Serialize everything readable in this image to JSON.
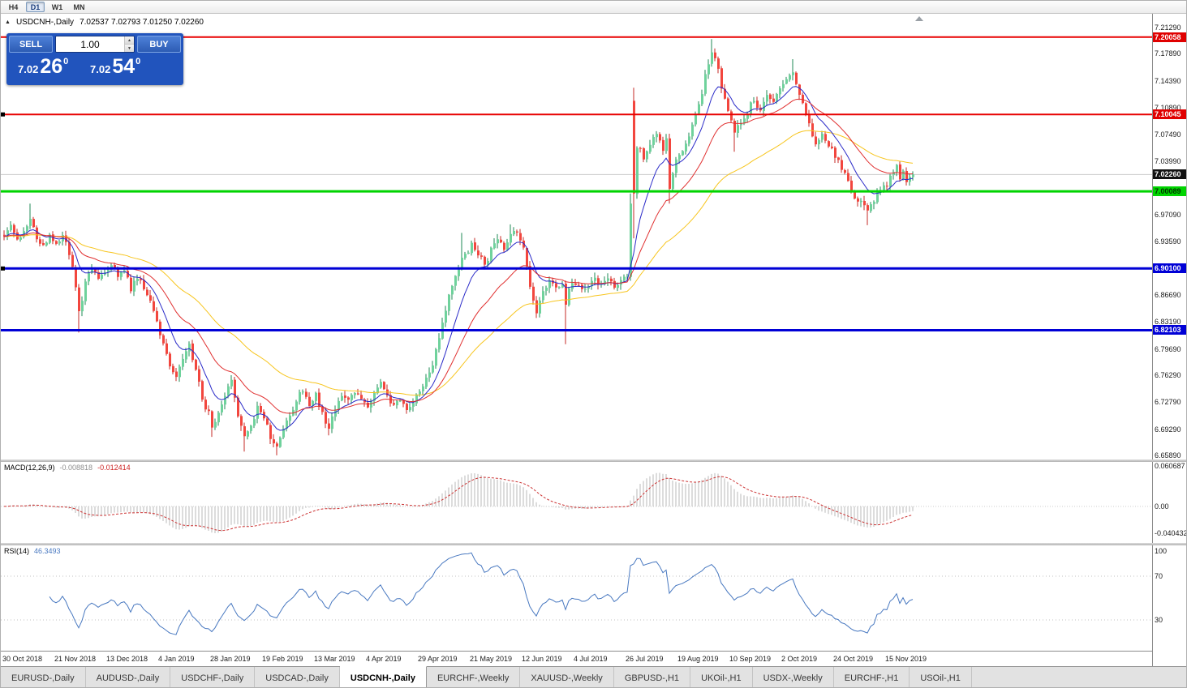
{
  "toolbar": {
    "timeframes": [
      {
        "label": "H4",
        "active": false
      },
      {
        "label": "D1",
        "active": true
      },
      {
        "label": "W1",
        "active": false
      },
      {
        "label": "MN",
        "active": false
      }
    ]
  },
  "chart_header": {
    "collapse_icon": "▲",
    "title": "USDCNH-,Daily",
    "ohlc": "7.02537 7.02793 7.01250 7.02260"
  },
  "trade_panel": {
    "sell_label": "SELL",
    "buy_label": "BUY",
    "volume": "1.00",
    "sell_price_main": "7.02",
    "sell_price_pips": "26",
    "sell_price_pt": "0",
    "buy_price_main": "7.02",
    "buy_price_pips": "54",
    "buy_price_pt": "0",
    "panel_color": "#2154bd"
  },
  "chart_data": {
    "type": "candlestick",
    "symbol": "USDCNH-",
    "timeframe": "Daily",
    "title": "USDCNH-,Daily",
    "ohlc_display": {
      "open": "7.02537",
      "high": "7.02793",
      "low": "7.01250",
      "close": "7.02260"
    },
    "current_price": 7.0226,
    "ylim": [
      6.6537,
      7.2307
    ],
    "bar_count": 281,
    "bars_per_label": 16,
    "x_labels": [
      "30 Oct 2018",
      "21 Nov 2018",
      "13 Dec 2018",
      "4 Jan 2019",
      "28 Jan 2019",
      "19 Feb 2019",
      "13 Mar 2019",
      "4 Apr 2019",
      "29 Apr 2019",
      "21 May 2019",
      "12 Jun 2019",
      "4 Jul 2019",
      "26 Jul 2019",
      "19 Aug 2019",
      "10 Sep 2019",
      "2 Oct 2019",
      "24 Oct 2019",
      "15 Nov 2019"
    ],
    "y_ticks": [
      {
        "label": "7.21290",
        "price": 7.2129
      },
      {
        "label": "7.17890",
        "price": 7.1789
      },
      {
        "label": "7.14390",
        "price": 7.1439
      },
      {
        "label": "7.10890",
        "price": 7.1089
      },
      {
        "label": "7.07490",
        "price": 7.0749
      },
      {
        "label": "7.03990",
        "price": 7.0399
      },
      {
        "label": "6.97090",
        "price": 6.9709
      },
      {
        "label": "6.93590",
        "price": 6.9359
      },
      {
        "label": "6.86690",
        "price": 6.8669
      },
      {
        "label": "6.83190",
        "price": 6.8319
      },
      {
        "label": "6.79690",
        "price": 6.7969
      },
      {
        "label": "6.76290",
        "price": 6.7629
      },
      {
        "label": "6.72790",
        "price": 6.7279
      },
      {
        "label": "6.69290",
        "price": 6.6929
      },
      {
        "label": "6.65890",
        "price": 6.6589
      }
    ],
    "price_tags": [
      {
        "label": "7.20058",
        "price": 7.20058,
        "bg": "#e00000",
        "fg": "#ffffff"
      },
      {
        "label": "7.10045",
        "price": 7.10045,
        "bg": "#e00000",
        "fg": "#ffffff"
      },
      {
        "label": "7.02260",
        "price": 7.0226,
        "bg": "#111111",
        "fg": "#ffffff"
      },
      {
        "label": "7.00089",
        "price": 7.00089,
        "bg": "#00d400",
        "fg": "#003300"
      },
      {
        "label": "6.90100",
        "price": 6.901,
        "bg": "#0000d6",
        "fg": "#ffffff"
      },
      {
        "label": "6.82103",
        "price": 6.82103,
        "bg": "#0000d6",
        "fg": "#ffffff"
      }
    ],
    "h_lines": [
      {
        "price": 7.20058,
        "color": "#e80000",
        "width": 2,
        "anchor": false
      },
      {
        "price": 7.10045,
        "color": "#e80000",
        "width": 2,
        "anchor": true
      },
      {
        "price": 7.00089,
        "color": "#00d400",
        "width": 3,
        "anchor": false
      },
      {
        "price": 6.901,
        "color": "#0000d6",
        "width": 3,
        "anchor": true
      },
      {
        "price": 6.82103,
        "color": "#0000d6",
        "width": 3,
        "anchor": false
      }
    ],
    "colors": {
      "up_body": "#6fd29c",
      "up_wick": "#1f8a55",
      "down_body": "#f2463e",
      "down_wick": "#c62a24",
      "current_price_line": "#c9c9c9"
    },
    "moving_averages": [
      {
        "period": 55,
        "color": "#f7c51e"
      },
      {
        "period": 10,
        "color": "#2a2ac8"
      },
      {
        "period": 25,
        "color": "#e02f2f"
      }
    ],
    "close_path_anchors": [
      [
        0,
        6.945
      ],
      [
        2,
        6.957
      ],
      [
        4,
        6.938
      ],
      [
        6,
        6.95
      ],
      [
        8,
        6.968
      ],
      [
        10,
        6.942
      ],
      [
        12,
        6.928
      ],
      [
        14,
        6.947
      ],
      [
        16,
        6.932
      ],
      [
        18,
        6.944
      ],
      [
        20,
        6.92
      ],
      [
        22,
        6.878
      ],
      [
        23,
        6.842
      ],
      [
        24,
        6.862
      ],
      [
        25,
        6.888
      ],
      [
        27,
        6.902
      ],
      [
        29,
        6.886
      ],
      [
        31,
        6.897
      ],
      [
        33,
        6.906
      ],
      [
        35,
        6.89
      ],
      [
        37,
        6.9
      ],
      [
        39,
        6.874
      ],
      [
        41,
        6.89
      ],
      [
        43,
        6.878
      ],
      [
        45,
        6.858
      ],
      [
        47,
        6.833
      ],
      [
        49,
        6.8
      ],
      [
        51,
        6.775
      ],
      [
        53,
        6.758
      ],
      [
        55,
        6.784
      ],
      [
        57,
        6.8
      ],
      [
        59,
        6.77
      ],
      [
        61,
        6.732
      ],
      [
        63,
        6.712
      ],
      [
        64,
        6.697
      ],
      [
        66,
        6.716
      ],
      [
        68,
        6.74
      ],
      [
        70,
        6.76
      ],
      [
        72,
        6.712
      ],
      [
        74,
        6.682
      ],
      [
        76,
        6.7
      ],
      [
        78,
        6.72
      ],
      [
        80,
        6.71
      ],
      [
        82,
        6.682
      ],
      [
        84,
        6.669
      ],
      [
        86,
        6.692
      ],
      [
        88,
        6.712
      ],
      [
        90,
        6.73
      ],
      [
        92,
        6.744
      ],
      [
        94,
        6.722
      ],
      [
        96,
        6.736
      ],
      [
        98,
        6.712
      ],
      [
        100,
        6.697
      ],
      [
        102,
        6.72
      ],
      [
        104,
        6.74
      ],
      [
        106,
        6.728
      ],
      [
        108,
        6.744
      ],
      [
        110,
        6.734
      ],
      [
        112,
        6.72
      ],
      [
        114,
        6.736
      ],
      [
        116,
        6.75
      ],
      [
        118,
        6.736
      ],
      [
        120,
        6.72
      ],
      [
        122,
        6.732
      ],
      [
        124,
        6.716
      ],
      [
        126,
        6.73
      ],
      [
        128,
        6.742
      ],
      [
        130,
        6.756
      ],
      [
        132,
        6.776
      ],
      [
        134,
        6.81
      ],
      [
        136,
        6.846
      ],
      [
        138,
        6.88
      ],
      [
        140,
        6.904
      ],
      [
        142,
        6.918
      ],
      [
        144,
        6.934
      ],
      [
        146,
        6.92
      ],
      [
        148,
        6.906
      ],
      [
        150,
        6.924
      ],
      [
        152,
        6.938
      ],
      [
        154,
        6.928
      ],
      [
        156,
        6.944
      ],
      [
        158,
        6.952
      ],
      [
        160,
        6.93
      ],
      [
        161,
        6.9
      ],
      [
        162,
        6.878
      ],
      [
        163,
        6.856
      ],
      [
        164,
        6.846
      ],
      [
        166,
        6.868
      ],
      [
        168,
        6.884
      ],
      [
        170,
        6.874
      ],
      [
        172,
        6.88
      ],
      [
        173,
        6.852
      ],
      [
        174,
        6.878
      ],
      [
        176,
        6.884
      ],
      [
        178,
        6.874
      ],
      [
        180,
        6.88
      ],
      [
        182,
        6.886
      ],
      [
        184,
        6.878
      ],
      [
        186,
        6.884
      ],
      [
        188,
        6.878
      ],
      [
        190,
        6.884
      ],
      [
        192,
        6.892
      ],
      [
        193,
        6.985
      ],
      [
        194,
        6.998
      ],
      [
        195,
        7.06
      ],
      [
        197,
        7.045
      ],
      [
        199,
        7.06
      ],
      [
        201,
        7.075
      ],
      [
        203,
        7.055
      ],
      [
        204,
        7.07
      ],
      [
        205,
        7.0
      ],
      [
        207,
        7.04
      ],
      [
        209,
        7.052
      ],
      [
        211,
        7.072
      ],
      [
        213,
        7.1
      ],
      [
        215,
        7.13
      ],
      [
        217,
        7.168
      ],
      [
        218,
        7.183
      ],
      [
        220,
        7.156
      ],
      [
        222,
        7.12
      ],
      [
        225,
        7.076
      ],
      [
        227,
        7.09
      ],
      [
        229,
        7.104
      ],
      [
        231,
        7.12
      ],
      [
        233,
        7.102
      ],
      [
        235,
        7.128
      ],
      [
        237,
        7.118
      ],
      [
        239,
        7.138
      ],
      [
        241,
        7.15
      ],
      [
        243,
        7.158
      ],
      [
        245,
        7.13
      ],
      [
        247,
        7.102
      ],
      [
        250,
        7.062
      ],
      [
        252,
        7.076
      ],
      [
        254,
        7.06
      ],
      [
        256,
        7.046
      ],
      [
        258,
        7.03
      ],
      [
        260,
        7.012
      ],
      [
        262,
        6.996
      ],
      [
        264,
        6.986
      ],
      [
        266,
        6.976
      ],
      [
        268,
        6.99
      ],
      [
        270,
        7.004
      ],
      [
        272,
        7.012
      ],
      [
        274,
        7.026
      ],
      [
        275,
        7.036
      ],
      [
        276,
        7.02
      ],
      [
        277,
        7.03
      ],
      [
        278,
        7.016
      ],
      [
        279,
        7.024
      ],
      [
        280,
        7.0226
      ]
    ],
    "spikes": [
      [
        8,
        "h",
        6.985
      ],
      [
        23,
        "l",
        6.818
      ],
      [
        64,
        "l",
        6.683
      ],
      [
        74,
        "l",
        6.664
      ],
      [
        84,
        "l",
        6.659
      ],
      [
        100,
        "l",
        6.685
      ],
      [
        141,
        "h",
        6.947
      ],
      [
        156,
        "h",
        6.958
      ],
      [
        173,
        "l",
        6.803
      ],
      [
        205,
        "l",
        6.985
      ],
      [
        218,
        "h",
        7.198
      ],
      [
        225,
        "l",
        7.052
      ],
      [
        243,
        "h",
        7.172
      ],
      [
        266,
        "l",
        6.957
      ]
    ],
    "candle_overrides": {
      "193": {
        "o": 6.89,
        "c": 6.985,
        "h": 6.998,
        "l": 6.885
      },
      "194": {
        "o": 7.118,
        "c": 6.998,
        "h": 7.135,
        "l": 6.94
      }
    },
    "macd": {
      "label": "MACD(12,26,9)",
      "value1": "-0.008818",
      "value2": "-0.012414",
      "ylim": [
        -0.055,
        0.067
      ],
      "ticks": [
        {
          "label": "0.060687",
          "v": 0.060687
        },
        {
          "label": "0.00",
          "v": 0
        },
        {
          "label": "-0.040432",
          "v": -0.040432
        }
      ],
      "histogram_color": "#b9b9b9",
      "signal_color": "#cc3333"
    },
    "rsi": {
      "label": "RSI(14)",
      "value": "46.3493",
      "line_color": "#4878c0",
      "ticks": [
        {
          "label": "100",
          "v": 100
        },
        {
          "label": "70",
          "v": 70
        },
        {
          "label": "30",
          "v": 30
        }
      ],
      "levels": [
        70,
        30
      ]
    }
  },
  "tabs": [
    {
      "label": "EURUSD-,Daily",
      "active": false
    },
    {
      "label": "AUDUSD-,Daily",
      "active": false
    },
    {
      "label": "USDCHF-,Daily",
      "active": false
    },
    {
      "label": "USDCAD-,Daily",
      "active": false
    },
    {
      "label": "USDCNH-,Daily",
      "active": true
    },
    {
      "label": "EURCHF-,Weekly",
      "active": false
    },
    {
      "label": "XAUUSD-,Weekly",
      "active": false
    },
    {
      "label": "GBPUSD-,H1",
      "active": false
    },
    {
      "label": "UKOil-,H1",
      "active": false
    },
    {
      "label": "USDX-,Weekly",
      "active": false
    },
    {
      "label": "EURCHF-,H1",
      "active": false
    },
    {
      "label": "USOil-,H1",
      "active": false
    }
  ]
}
